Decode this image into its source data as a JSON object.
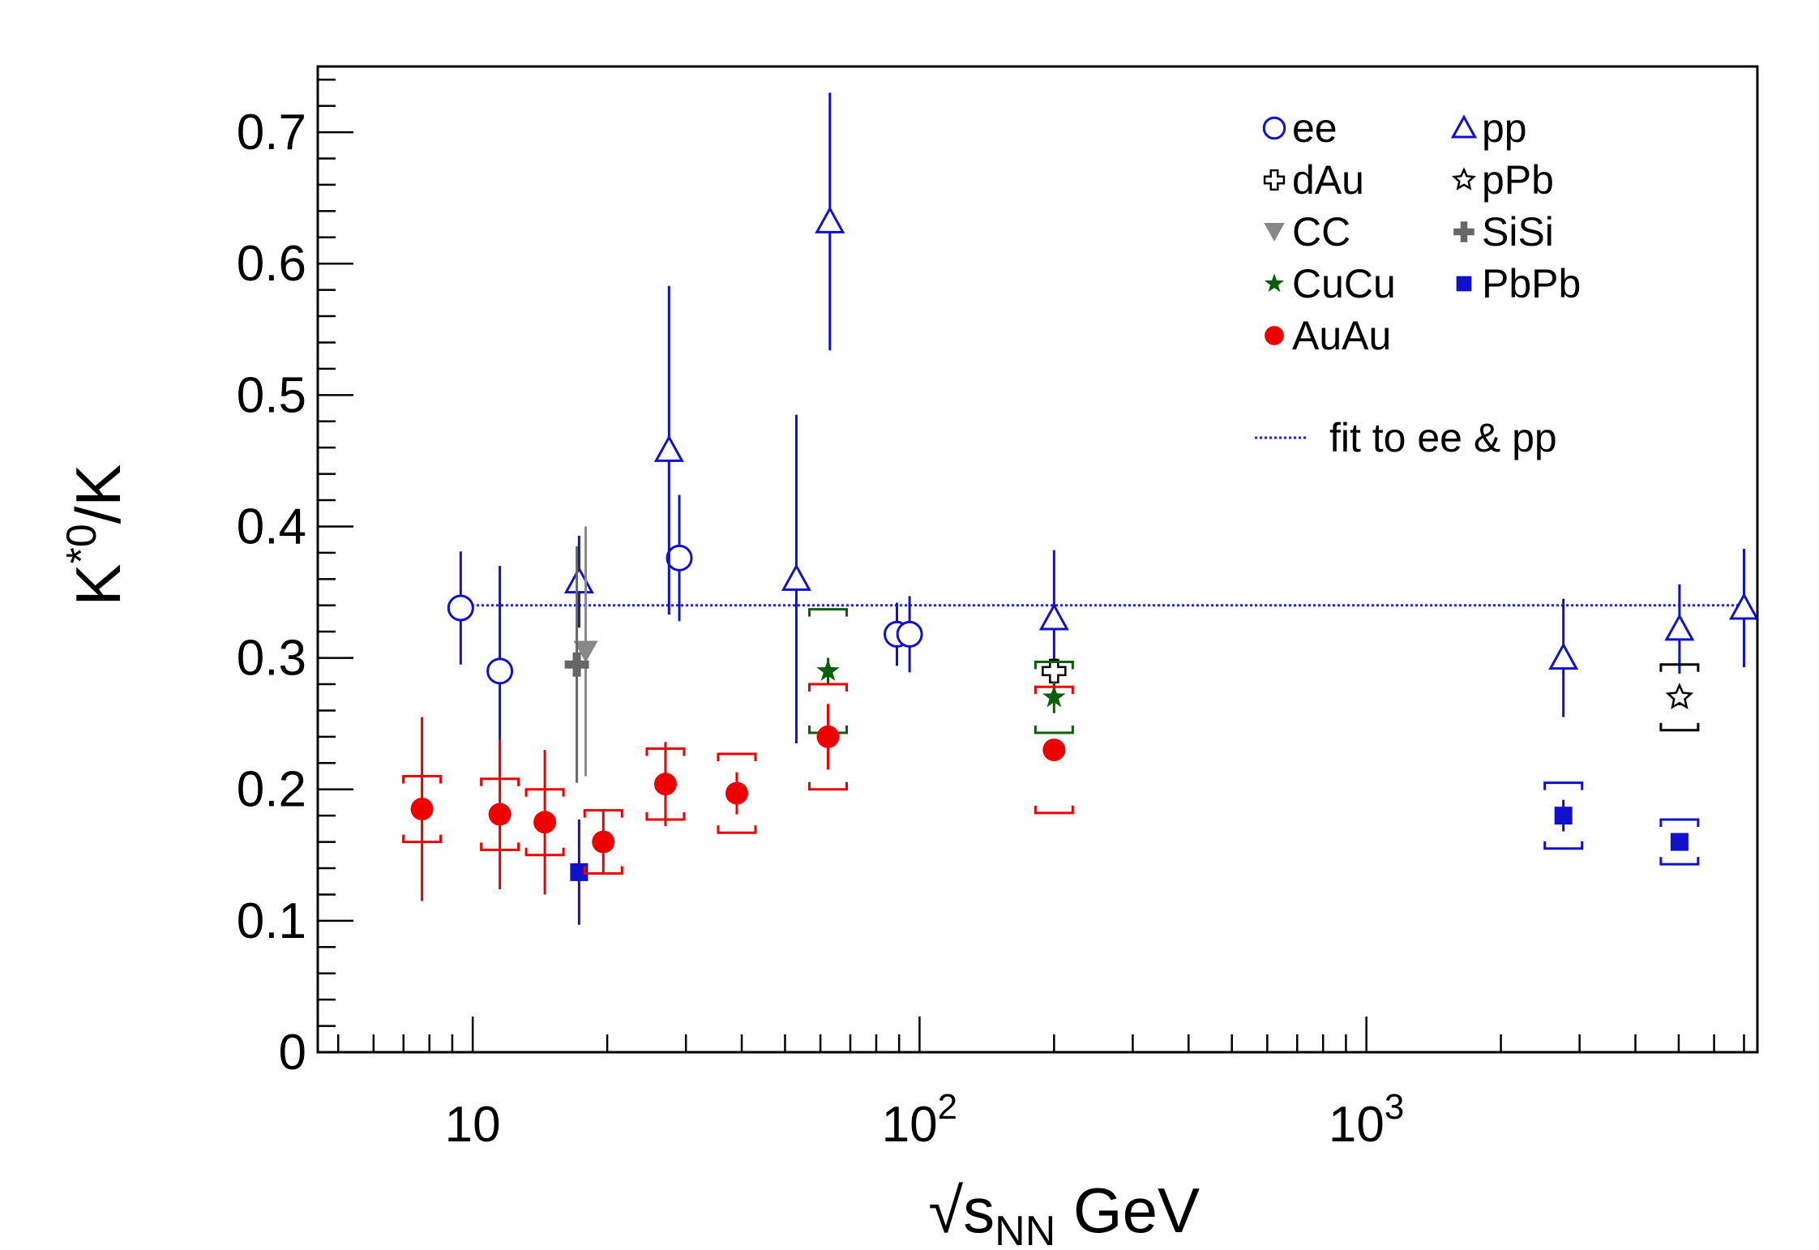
{
  "chart_data": {
    "type": "scatter",
    "xlabel": "√s_NN GeV",
    "ylabel": "K*0/K",
    "xscale": "log",
    "xlim": [
      4.5,
      7500
    ],
    "ylim": [
      0,
      0.75
    ],
    "x_tick_labels": [
      "10",
      "10^2",
      "10^3"
    ],
    "y_tick_labels": [
      "0",
      "0.1",
      "0.2",
      "0.3",
      "0.4",
      "0.5",
      "0.6",
      "0.7"
    ],
    "legend_position": "top-right",
    "legend": {
      "entries": [
        "ee",
        "pp",
        "dAu",
        "pPb",
        "CC",
        "SiSi",
        "CuCu",
        "PbPb",
        "AuAu"
      ],
      "fit_label": "fit to ee & pp"
    },
    "fit_line": {
      "y": 0.34,
      "x_range": [
        9.0,
        7000
      ],
      "color": "#2222dd"
    },
    "series": [
      {
        "name": "ee",
        "marker": "open-circle",
        "color": "#1111cc",
        "points": [
          {
            "x": 9.4,
            "y": 0.338,
            "err": 0.043
          },
          {
            "x": 11.5,
            "y": 0.29,
            "err": 0.08
          },
          {
            "x": 29,
            "y": 0.376,
            "err": 0.048
          },
          {
            "x": 89,
            "y": 0.318,
            "err": 0.024
          },
          {
            "x": 95,
            "y": 0.318,
            "err": 0.029
          }
        ]
      },
      {
        "name": "pp",
        "marker": "open-triangle",
        "color": "#1111cc",
        "points": [
          {
            "x": 17.3,
            "y": 0.358,
            "err": 0.035
          },
          {
            "x": 27.5,
            "y": 0.458,
            "err": 0.125
          },
          {
            "x": 53,
            "y": 0.36,
            "err": 0.125
          },
          {
            "x": 63,
            "y": 0.632,
            "err": 0.098
          },
          {
            "x": 200,
            "y": 0.33,
            "err": 0.052
          },
          {
            "x": 2760,
            "y": 0.3,
            "err": 0.045
          },
          {
            "x": 5020,
            "y": 0.322,
            "err": 0.034
          },
          {
            "x": 7000,
            "y": 0.338,
            "err": 0.045
          }
        ]
      },
      {
        "name": "dAu",
        "marker": "open-cross",
        "color": "#000000",
        "points": [
          {
            "x": 200,
            "y": 0.29,
            "err": 0.008
          }
        ]
      },
      {
        "name": "pPb",
        "marker": "open-star",
        "color": "#000000",
        "points": [
          {
            "x": 5020,
            "y": 0.27,
            "err": 0.006,
            "sys": 0.025
          }
        ]
      },
      {
        "name": "CC",
        "marker": "filled-triangle-down",
        "color": "#888888",
        "points": [
          {
            "x": 17.9,
            "y": 0.305,
            "err": 0.095
          }
        ]
      },
      {
        "name": "SiSi",
        "marker": "filled-cross",
        "color": "#666666",
        "points": [
          {
            "x": 17.1,
            "y": 0.295,
            "err": 0.09
          }
        ]
      },
      {
        "name": "CuCu",
        "marker": "filled-star",
        "color": "#0b5e0b",
        "points": [
          {
            "x": 62.4,
            "y": 0.29,
            "err": 0.01,
            "sys": 0.047
          },
          {
            "x": 200,
            "y": 0.27,
            "err": 0.012,
            "sys": 0.027
          }
        ]
      },
      {
        "name": "PbPb",
        "marker": "filled-square",
        "color": "#1111cc",
        "points": [
          {
            "x": 17.3,
            "y": 0.137,
            "err": 0.04
          },
          {
            "x": 2760,
            "y": 0.18,
            "err": 0.012,
            "sys": 0.025
          },
          {
            "x": 5020,
            "y": 0.16,
            "err": 0.006,
            "sys": 0.017
          }
        ]
      },
      {
        "name": "AuAu",
        "marker": "filled-circle",
        "color": "#ee0000",
        "points": [
          {
            "x": 7.7,
            "y": 0.185,
            "err": 0.07,
            "sys": 0.025
          },
          {
            "x": 11.5,
            "y": 0.181,
            "err": 0.057,
            "sys": 0.027
          },
          {
            "x": 14.5,
            "y": 0.175,
            "err": 0.055,
            "sys": 0.025
          },
          {
            "x": 19.6,
            "y": 0.16,
            "err": 0.025,
            "sys": 0.024
          },
          {
            "x": 27,
            "y": 0.204,
            "err": 0.032,
            "sys": 0.027
          },
          {
            "x": 39,
            "y": 0.197,
            "err": 0.016,
            "sys": 0.03
          },
          {
            "x": 62.4,
            "y": 0.24,
            "err": 0.025,
            "sys": 0.04
          },
          {
            "x": 200,
            "y": 0.23,
            "err": 0.008,
            "sys": 0.048
          }
        ]
      }
    ]
  }
}
